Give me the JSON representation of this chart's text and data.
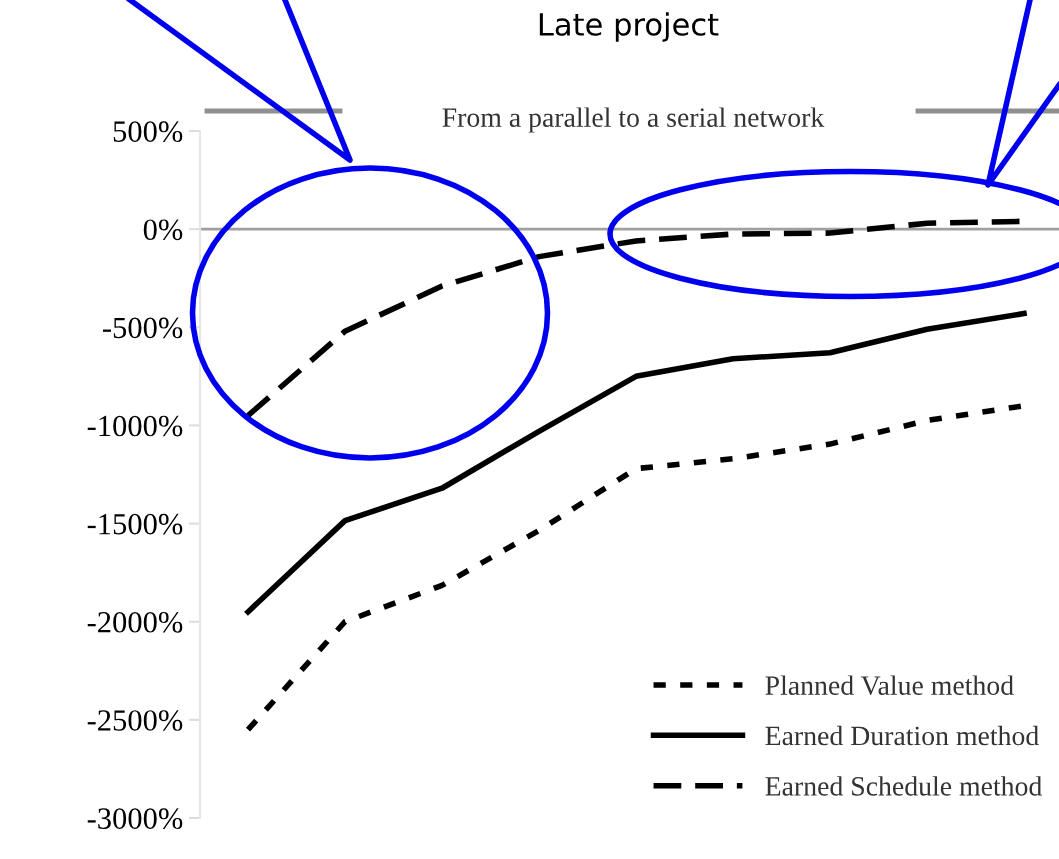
{
  "chart_data": {
    "type": "line",
    "title": "Late project",
    "categories": [
      null,
      null,
      null,
      null,
      null,
      null,
      null,
      null,
      null
    ],
    "series": [
      {
        "name": "Planned Value method",
        "color": "#000000",
        "line_style": "dotted",
        "values": [
          -2550,
          -2000,
          -1815,
          -1535,
          -1220,
          -1170,
          -1095,
          -975,
          -900
        ]
      },
      {
        "name": "Earned Duration method",
        "color": "#000000",
        "line_style": "solid",
        "values": [
          -1950,
          -1485,
          -1320,
          -1030,
          -750,
          -660,
          -630,
          -510,
          -430
        ]
      },
      {
        "name": "Earned Schedule method",
        "color": "#000000",
        "line_style": "dashed",
        "values": [
          -950,
          -520,
          -290,
          -140,
          -60,
          -25,
          -20,
          30,
          40
        ]
      }
    ],
    "ylim": [
      -3000,
      500
    ],
    "yticks": [
      {
        "value": -3000,
        "label": "-3000%"
      },
      {
        "value": -2500,
        "label": "-2500%"
      },
      {
        "value": -2000,
        "label": "-2000%"
      },
      {
        "value": -1500,
        "label": "-1500%"
      },
      {
        "value": -1000,
        "label": "-1000%"
      },
      {
        "value": -500,
        "label": "-500%"
      },
      {
        "value": 0,
        "label": "0%"
      },
      {
        "value": 500,
        "label": "500%"
      }
    ],
    "ref_lines": [
      {
        "axis": "y",
        "value": 0,
        "color": "#a0a0a0",
        "line_style": "solid"
      }
    ],
    "annotations": [
      "From a parallel to a serial network"
    ],
    "tick_labels": "y",
    "grid": false,
    "marker": "none",
    "legend": "bottom right"
  }
}
